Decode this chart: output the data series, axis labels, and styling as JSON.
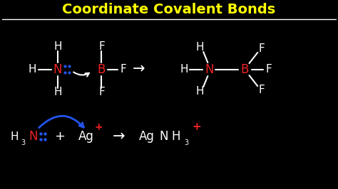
{
  "title": "Coordinate Covalent Bonds",
  "title_color": "#FFFF00",
  "bg_color": "#000000",
  "white": "#FFFFFF",
  "red": "#EE2222",
  "blue": "#2255EE",
  "figsize": [
    4.74,
    2.66
  ],
  "dpi": 100,
  "xlim": [
    0,
    10
  ],
  "ylim": [
    0,
    5.6
  ]
}
